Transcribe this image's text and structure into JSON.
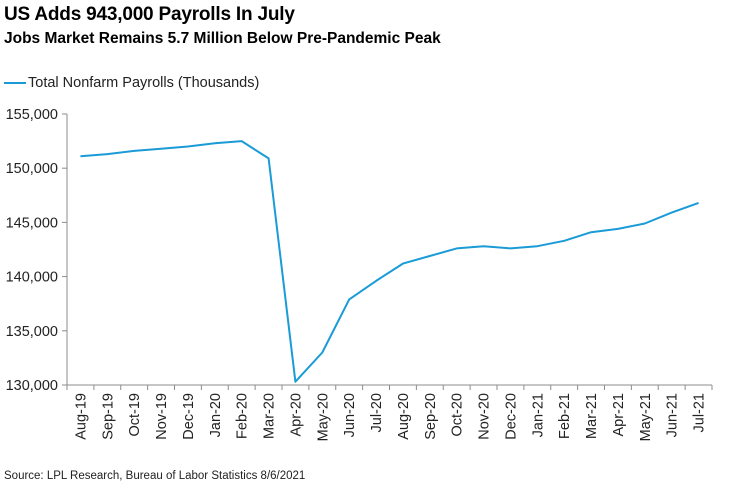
{
  "chart_data": {
    "type": "line",
    "title": "US Adds 943,000 Payrolls In July",
    "subtitle": "Jobs Market Remains 5.7 Million Below Pre-Pandemic Peak",
    "source": "Source: LPL Research, Bureau of Labor Statistics 8/6/2021",
    "xlabel": "",
    "ylabel": "",
    "ylim": [
      130000,
      155000
    ],
    "yticks": [
      "130,000",
      "135,000",
      "140,000",
      "145,000",
      "150,000",
      "155,000"
    ],
    "ytick_values": [
      130000,
      135000,
      140000,
      145000,
      150000,
      155000
    ],
    "categories": [
      "Aug-19",
      "Sep-19",
      "Oct-19",
      "Nov-19",
      "Dec-19",
      "Jan-20",
      "Feb-20",
      "Mar-20",
      "Apr-20",
      "May-20",
      "Jun-20",
      "Jul-20",
      "Aug-20",
      "Sep-20",
      "Oct-20",
      "Nov-20",
      "Dec-20",
      "Jan-21",
      "Feb-21",
      "Mar-21",
      "Apr-21",
      "May-21",
      "Jun-21",
      "Jul-21"
    ],
    "series": [
      {
        "name": "Total Nonfarm Payrolls (Thousands)",
        "color": "#1a9bd7",
        "values": [
          151100,
          151300,
          151600,
          151800,
          152000,
          152300,
          152500,
          150900,
          130300,
          133000,
          137900,
          139600,
          141200,
          141900,
          142600,
          142800,
          142600,
          142800,
          143300,
          144100,
          144400,
          144900,
          145900,
          146800
        ]
      }
    ],
    "legend_position": "top-left",
    "grid": false
  }
}
